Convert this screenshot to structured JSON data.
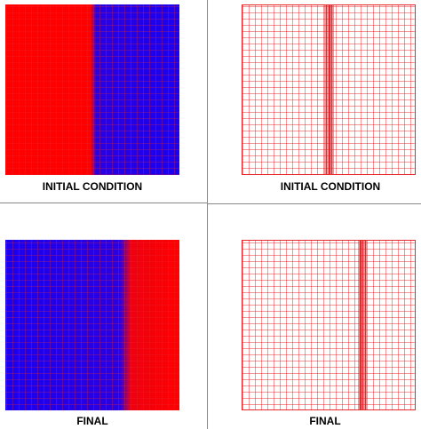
{
  "panels": [
    {
      "label": "INITIAL CONDITION"
    },
    {
      "label": "INITIAL CONDITION"
    },
    {
      "label": "FINAL"
    },
    {
      "label": "FINAL"
    }
  ]
}
